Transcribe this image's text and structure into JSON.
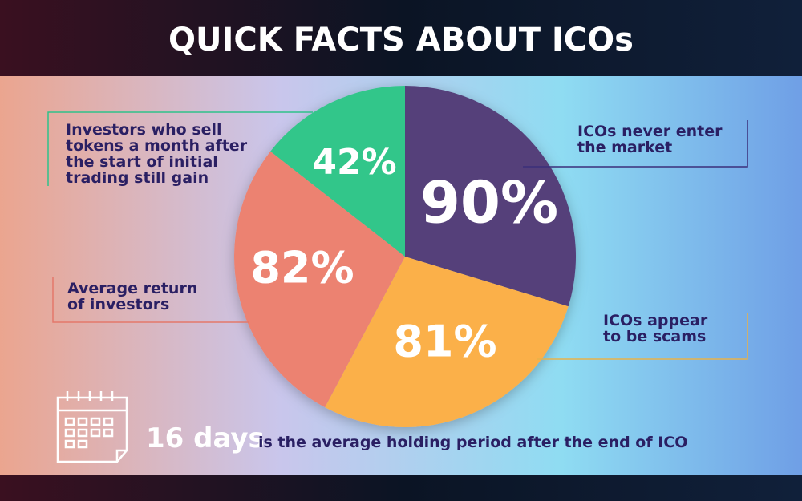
{
  "header": {
    "title": "QUICK FACTS ABOUT ICOs"
  },
  "facts": [
    {
      "value": "90%",
      "label": [
        "ICOs never enter",
        "the market"
      ]
    },
    {
      "value": "81%",
      "label": [
        "ICOs appear",
        "to be scams"
      ]
    },
    {
      "value": "82%",
      "label": [
        "Average return",
        "of investors"
      ]
    },
    {
      "value": "42%",
      "label": [
        "Investors who sell",
        "tokens a month after",
        "the start of initial",
        "trading still gain"
      ]
    }
  ],
  "footer": {
    "highlight": "16 days",
    "text": "is the average holding period after the end of ICO"
  }
}
